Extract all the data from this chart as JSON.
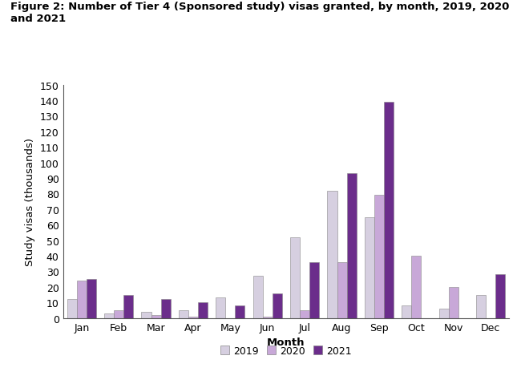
{
  "title_line1": "Figure 2: Number of Tier 4 (Sponsored study) visas granted, by month, 2019, 2020",
  "title_line2": "and 2021",
  "xlabel": "Month",
  "ylabel": "Study visas (thousands)",
  "months": [
    "Jan",
    "Feb",
    "Mar",
    "Apr",
    "May",
    "Jun",
    "Jul",
    "Aug",
    "Sep",
    "Oct",
    "Nov",
    "Dec"
  ],
  "data_2019": [
    12,
    3,
    4,
    5,
    13,
    27,
    52,
    82,
    65,
    8,
    6,
    15
  ],
  "data_2020": [
    24,
    5,
    2,
    1,
    0,
    1,
    5,
    36,
    79,
    40,
    20,
    0
  ],
  "data_2021": [
    25,
    15,
    12,
    10,
    8,
    16,
    36,
    93,
    139,
    0,
    0,
    28
  ],
  "color_2019": "#d6cfe0",
  "color_2020": "#c8a8d8",
  "color_2021": "#6b2d8b",
  "ylim": [
    0,
    150
  ],
  "yticks": [
    0,
    10,
    20,
    30,
    40,
    50,
    60,
    70,
    80,
    90,
    100,
    110,
    120,
    130,
    140,
    150
  ],
  "background_color": "#ffffff",
  "title_color": "#000000",
  "title_fontsize": 9.5,
  "axis_label_fontsize": 9.5,
  "tick_fontsize": 9,
  "legend_labels": [
    "2019",
    "2020",
    "2021"
  ],
  "bar_width": 0.26
}
